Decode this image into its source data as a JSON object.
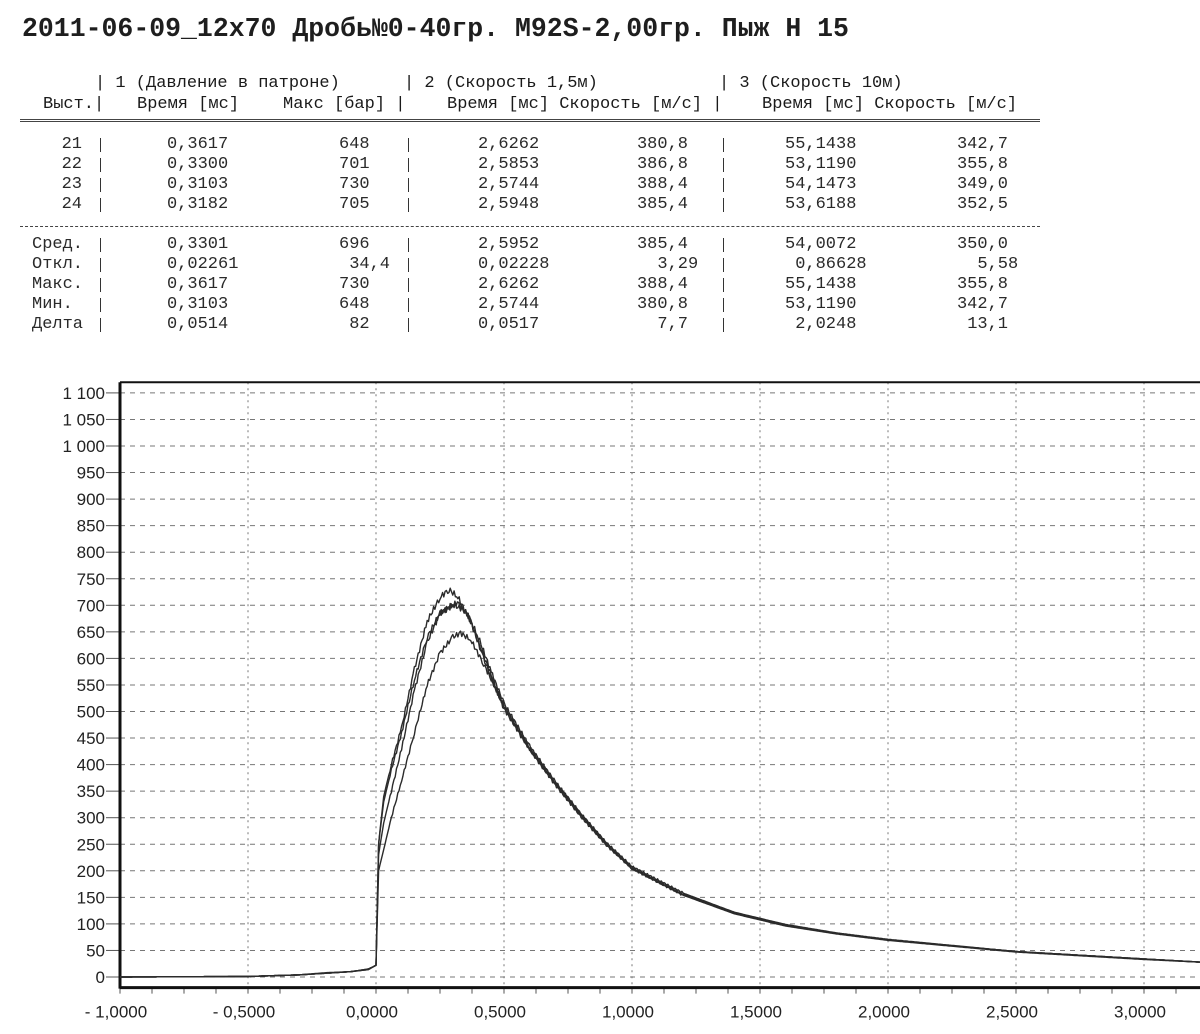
{
  "title": "2011-06-09_12x70 Дробь№0-40гр. M92S-2,00гр. Пыж Н 15",
  "table": {
    "group_headers": [
      "| 1 (Давление в патроне)",
      "| 2 (Скорость 1,5м)",
      "| 3 (Скорость 10м)"
    ],
    "column_headers": {
      "shot": "Выст.|",
      "time1": "Время [мс]",
      "max1": "Макс [бар] |",
      "group2": "Время [мс] Скорость [м/с] |",
      "group3": "Время [мс] Скорость [м/с]"
    },
    "rows": [
      {
        "shot": "21",
        "time1": "0,3617",
        "max1": "648",
        "time2": "2,6262",
        "speed2": "380,8",
        "time3": "55,1438",
        "speed3": "342,7"
      },
      {
        "shot": "22",
        "time1": "0,3300",
        "max1": "701",
        "time2": "2,5853",
        "speed2": "386,8",
        "time3": "53,1190",
        "speed3": "355,8"
      },
      {
        "shot": "23",
        "time1": "0,3103",
        "max1": "730",
        "time2": "2,5744",
        "speed2": "388,4",
        "time3": "54,1473",
        "speed3": "349,0"
      },
      {
        "shot": "24",
        "time1": "0,3182",
        "max1": "705",
        "time2": "2,5948",
        "speed2": "385,4",
        "time3": "53,6188",
        "speed3": "352,5"
      }
    ],
    "stats": [
      {
        "label": "Сред.",
        "time1": "0,3301",
        "max1": "696",
        "time2": "2,5952",
        "speed2": "385,4",
        "time3": "54,0072",
        "speed3": "350,0"
      },
      {
        "label": "Откл.",
        "time1": "0,02261",
        "max1": "34,4",
        "time2": "0,02228",
        "speed2": "3,29",
        "time3": "0,86628",
        "speed3": "5,58"
      },
      {
        "label": "Макс.",
        "time1": "0,3617",
        "max1": "730",
        "time2": "2,6262",
        "speed2": "388,4",
        "time3": "55,1438",
        "speed3": "355,8"
      },
      {
        "label": "Мин.",
        "time1": "0,3103",
        "max1": "648",
        "time2": "2,5744",
        "speed2": "380,8",
        "time3": "53,1190",
        "speed3": "342,7"
      },
      {
        "label": "Делта",
        "time1": "0,0514",
        "max1": "82",
        "time2": "0,0517",
        "speed2": "7,7",
        "time3": "2,0248",
        "speed3": "13,1"
      }
    ]
  },
  "chart_data": {
    "type": "line",
    "title": "",
    "xlabel": "",
    "ylabel": "",
    "xlim": [
      -1.0,
      3.22
    ],
    "ylim": [
      -20,
      1120
    ],
    "grid": true,
    "x_ticks": [
      -1.0,
      -0.5,
      0.0,
      0.5,
      1.0,
      1.5,
      2.0,
      2.5,
      3.0
    ],
    "x_tick_labels": [
      "- 1,0000",
      "- 0,5000",
      "0,0000",
      "0,5000",
      "1,0000",
      "1,5000",
      "2,0000",
      "2,5000",
      "3,0000"
    ],
    "y_ticks": [
      0,
      50,
      100,
      150,
      200,
      250,
      300,
      350,
      400,
      450,
      500,
      550,
      600,
      650,
      700,
      750,
      800,
      850,
      900,
      950,
      1000,
      1050,
      1100
    ],
    "y_tick_labels": [
      "0",
      "50",
      "100",
      "150",
      "200",
      "250",
      "300",
      "350",
      "400",
      "450",
      "500",
      "550",
      "600",
      "650",
      "700",
      "750",
      "800",
      "850",
      "900",
      "950",
      "1 000",
      "1 050",
      "1 100"
    ],
    "line_color": "#2b2b2b",
    "series": [
      {
        "name": "21",
        "points": [
          [
            -1,
            0
          ],
          [
            -0.5,
            1
          ],
          [
            -0.3,
            4
          ],
          [
            -0.2,
            7
          ],
          [
            -0.1,
            10
          ],
          [
            -0.03,
            14
          ],
          [
            0,
            22
          ],
          [
            0.01,
            200
          ],
          [
            0.03,
            240
          ],
          [
            0.06,
            300
          ],
          [
            0.1,
            370
          ],
          [
            0.15,
            460
          ],
          [
            0.2,
            550
          ],
          [
            0.25,
            610
          ],
          [
            0.3,
            640
          ],
          [
            0.33,
            648
          ],
          [
            0.37,
            635
          ],
          [
            0.42,
            590
          ],
          [
            0.47,
            540
          ],
          [
            0.5,
            505
          ],
          [
            0.6,
            428
          ],
          [
            0.7,
            362
          ],
          [
            0.8,
            302
          ],
          [
            0.9,
            248
          ],
          [
            1.0,
            204
          ],
          [
            1.2,
            154
          ],
          [
            1.4,
            119
          ],
          [
            1.6,
            96
          ],
          [
            1.8,
            81
          ],
          [
            2.0,
            69
          ],
          [
            2.5,
            47
          ],
          [
            3.0,
            33
          ],
          [
            3.22,
            28
          ]
        ]
      },
      {
        "name": "22",
        "points": [
          [
            -1,
            0
          ],
          [
            -0.5,
            1
          ],
          [
            -0.3,
            4
          ],
          [
            -0.2,
            7
          ],
          [
            -0.1,
            10
          ],
          [
            -0.03,
            15
          ],
          [
            0,
            22
          ],
          [
            0.01,
            230
          ],
          [
            0.03,
            290
          ],
          [
            0.06,
            350
          ],
          [
            0.1,
            430
          ],
          [
            0.15,
            540
          ],
          [
            0.2,
            630
          ],
          [
            0.25,
            685
          ],
          [
            0.3,
            701
          ],
          [
            0.35,
            690
          ],
          [
            0.4,
            640
          ],
          [
            0.45,
            575
          ],
          [
            0.5,
            515
          ],
          [
            0.6,
            435
          ],
          [
            0.7,
            368
          ],
          [
            0.8,
            308
          ],
          [
            0.9,
            253
          ],
          [
            1.0,
            208
          ],
          [
            1.2,
            158
          ],
          [
            1.4,
            122
          ],
          [
            1.6,
            99
          ],
          [
            1.8,
            83
          ],
          [
            2.0,
            71
          ],
          [
            2.5,
            48
          ],
          [
            3.0,
            34
          ],
          [
            3.22,
            28
          ]
        ]
      },
      {
        "name": "23",
        "points": [
          [
            -1,
            0
          ],
          [
            -0.5,
            1
          ],
          [
            -0.3,
            4
          ],
          [
            -0.2,
            8
          ],
          [
            -0.1,
            10
          ],
          [
            -0.03,
            15
          ],
          [
            0,
            22
          ],
          [
            0.01,
            250
          ],
          [
            0.03,
            340
          ],
          [
            0.06,
            400
          ],
          [
            0.1,
            470
          ],
          [
            0.15,
            580
          ],
          [
            0.2,
            670
          ],
          [
            0.25,
            715
          ],
          [
            0.285,
            730
          ],
          [
            0.32,
            715
          ],
          [
            0.37,
            670
          ],
          [
            0.42,
            600
          ],
          [
            0.47,
            540
          ],
          [
            0.5,
            510
          ],
          [
            0.6,
            430
          ],
          [
            0.7,
            365
          ],
          [
            0.8,
            305
          ],
          [
            0.9,
            250
          ],
          [
            1.0,
            205
          ],
          [
            1.2,
            155
          ],
          [
            1.4,
            120
          ],
          [
            1.6,
            97
          ],
          [
            1.8,
            82
          ],
          [
            2.0,
            70
          ],
          [
            2.5,
            48
          ],
          [
            3.0,
            34
          ],
          [
            3.22,
            28
          ]
        ]
      },
      {
        "name": "24",
        "points": [
          [
            -1,
            0
          ],
          [
            -0.5,
            1
          ],
          [
            -0.3,
            4
          ],
          [
            -0.2,
            7
          ],
          [
            -0.1,
            10
          ],
          [
            -0.03,
            14
          ],
          [
            0,
            22
          ],
          [
            0.01,
            250
          ],
          [
            0.03,
            330
          ],
          [
            0.06,
            390
          ],
          [
            0.1,
            460
          ],
          [
            0.15,
            560
          ],
          [
            0.2,
            640
          ],
          [
            0.25,
            685
          ],
          [
            0.318,
            705
          ],
          [
            0.36,
            680
          ],
          [
            0.42,
            605
          ],
          [
            0.47,
            545
          ],
          [
            0.5,
            510
          ],
          [
            0.6,
            432
          ],
          [
            0.7,
            366
          ],
          [
            0.8,
            306
          ],
          [
            0.9,
            251
          ],
          [
            1.0,
            206
          ],
          [
            1.2,
            156
          ],
          [
            1.4,
            121
          ],
          [
            1.6,
            98
          ],
          [
            1.8,
            82
          ],
          [
            2.0,
            70
          ],
          [
            2.5,
            48
          ],
          [
            3.0,
            34
          ],
          [
            3.22,
            28
          ]
        ]
      }
    ]
  }
}
